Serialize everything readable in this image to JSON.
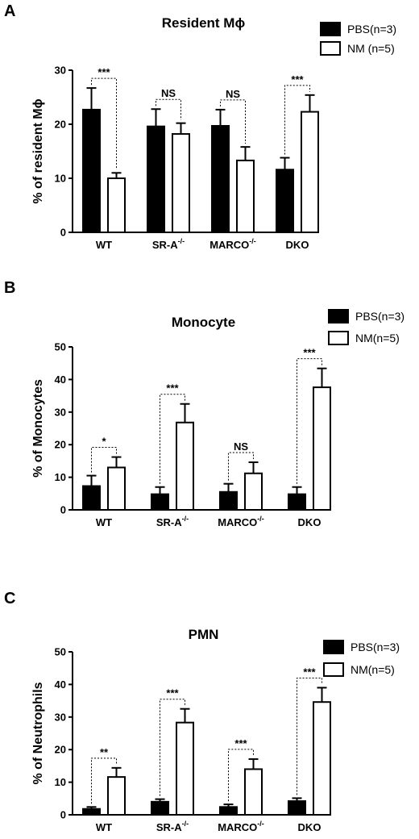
{
  "chart_data": [
    {
      "type": "bar",
      "panel": "A",
      "title": "Resident Mϕ",
      "xlabel": "",
      "ylabel": "% of resident Mϕ",
      "ylim": [
        0,
        30
      ],
      "yticks": [
        0,
        10,
        20,
        30
      ],
      "categories": [
        {
          "base": "WT",
          "sup": ""
        },
        {
          "base": "SR-A",
          "sup": "-/-"
        },
        {
          "base": "MARCO",
          "sup": "-/-"
        },
        {
          "base": "DKO",
          "sup": ""
        }
      ],
      "series": [
        {
          "name": "PBS(n=3)",
          "fill": "#000000",
          "values": [
            22.7,
            19.6,
            19.7,
            11.6
          ],
          "errors": [
            4.0,
            3.2,
            3.0,
            2.2
          ]
        },
        {
          "name": "NM (n=5)",
          "fill": "#ffffff",
          "values": [
            10.0,
            18.2,
            13.3,
            22.3
          ],
          "errors": [
            1.0,
            2.0,
            2.5,
            3.1
          ]
        }
      ],
      "significance": [
        "***",
        "NS",
        "NS",
        "***"
      ],
      "legend": "top-right",
      "grid": false
    },
    {
      "type": "bar",
      "panel": "B",
      "title": "Monocyte",
      "xlabel": "",
      "ylabel": "% of Monocytes",
      "ylim": [
        0,
        50
      ],
      "yticks": [
        0,
        10,
        20,
        30,
        40,
        50
      ],
      "categories": [
        {
          "base": "WT",
          "sup": ""
        },
        {
          "base": "SR-A",
          "sup": "-/-"
        },
        {
          "base": "MARCO",
          "sup": "-/-"
        },
        {
          "base": "DKO",
          "sup": ""
        }
      ],
      "series": [
        {
          "name": "PBS(n=3)",
          "fill": "#000000",
          "values": [
            7.3,
            4.8,
            5.5,
            4.8
          ],
          "errors": [
            3.2,
            2.2,
            2.5,
            2.2
          ]
        },
        {
          "name": "NM(n=5)",
          "fill": "#ffffff",
          "values": [
            13.0,
            26.8,
            11.2,
            37.6
          ],
          "errors": [
            3.2,
            5.7,
            3.4,
            5.8
          ]
        }
      ],
      "significance": [
        "*",
        "***",
        "NS",
        "***"
      ],
      "legend": "top-right",
      "grid": false
    },
    {
      "type": "bar",
      "panel": "C",
      "title": "PMN",
      "xlabel": "",
      "ylabel": "% of Neutrophils",
      "ylim": [
        0,
        50
      ],
      "yticks": [
        0,
        10,
        20,
        30,
        40,
        50
      ],
      "categories": [
        {
          "base": "WT",
          "sup": ""
        },
        {
          "base": "SR-A",
          "sup": "-/-"
        },
        {
          "base": "MARCO",
          "sup": "-/-"
        },
        {
          "base": "DKO",
          "sup": ""
        }
      ],
      "series": [
        {
          "name": "PBS(n=3)",
          "fill": "#000000",
          "values": [
            1.8,
            4.0,
            2.4,
            4.2
          ],
          "errors": [
            0.6,
            0.8,
            0.8,
            0.9
          ]
        },
        {
          "name": "NM(n=5)",
          "fill": "#ffffff",
          "values": [
            11.6,
            28.3,
            14.0,
            34.6
          ],
          "errors": [
            2.8,
            4.2,
            3.1,
            4.4
          ]
        }
      ],
      "significance": [
        "**",
        "***",
        "***",
        "***"
      ],
      "legend": "top-right",
      "grid": false
    }
  ]
}
